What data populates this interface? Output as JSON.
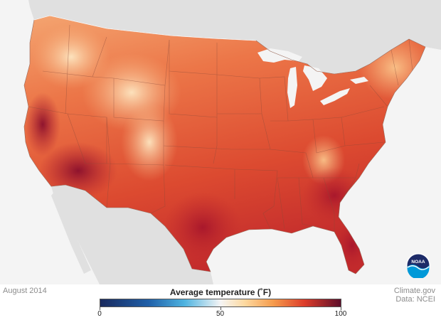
{
  "map": {
    "logo_text": "NOAA"
  },
  "footer": {
    "date": "August 2014",
    "credit_site": "Climate.gov",
    "credit_data": "Data: NCEI"
  },
  "legend": {
    "title": "Average temperature (˚F)",
    "min": 0,
    "max": 100,
    "ticks": [
      {
        "value": 0,
        "label": "0"
      },
      {
        "value": 50,
        "label": "50"
      },
      {
        "value": 100,
        "label": "100"
      }
    ],
    "colors": {
      "c0": "#1a2a5e",
      "c20": "#1f5fa8",
      "c35": "#4eb3e0",
      "c50": "#f5f5f5",
      "c60": "#fdd9a0",
      "c72": "#f59b4c",
      "c85": "#dc3c2a",
      "c100": "#5e0f2b"
    }
  }
}
